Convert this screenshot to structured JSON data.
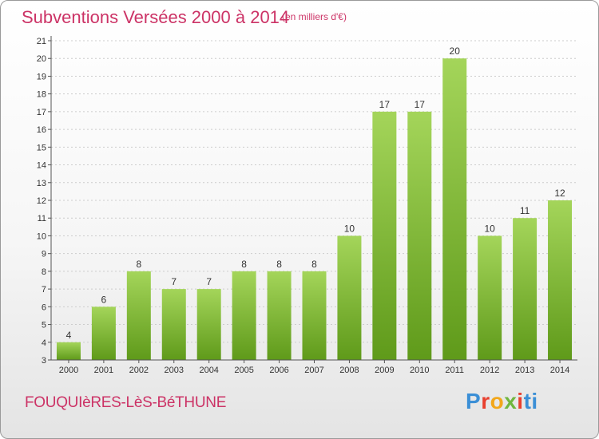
{
  "header": {
    "title": "Subventions Versées 2000 à 2014",
    "subtitle": "(en milliers d'€)"
  },
  "footer": {
    "commune": "FOUQUIèRES-LèS-BéTHUNE",
    "logo": "Proxiti"
  },
  "colors": {
    "title": "#cc3366",
    "bar_light": "#a4d55a",
    "bar_dark": "#5f9a1a",
    "axis": "#555555",
    "grid": "#cccccc"
  },
  "chart_data": {
    "type": "bar",
    "title": "Subventions Versées 2000 à 2014",
    "subtitle": "(en milliers d'€)",
    "xlabel": "",
    "ylabel": "",
    "categories": [
      "2000",
      "2001",
      "2002",
      "2003",
      "2004",
      "2005",
      "2006",
      "2007",
      "2008",
      "2009",
      "2010",
      "2011",
      "2012",
      "2013",
      "2014"
    ],
    "values": [
      4,
      6,
      8,
      7,
      7,
      8,
      8,
      8,
      10,
      17,
      17,
      20,
      10,
      11,
      12
    ],
    "ylim": [
      3,
      21
    ],
    "yticks": [
      3,
      4,
      5,
      6,
      7,
      8,
      9,
      10,
      11,
      12,
      13,
      14,
      15,
      16,
      17,
      18,
      19,
      20,
      21
    ],
    "grid": true,
    "data_labels": true
  }
}
